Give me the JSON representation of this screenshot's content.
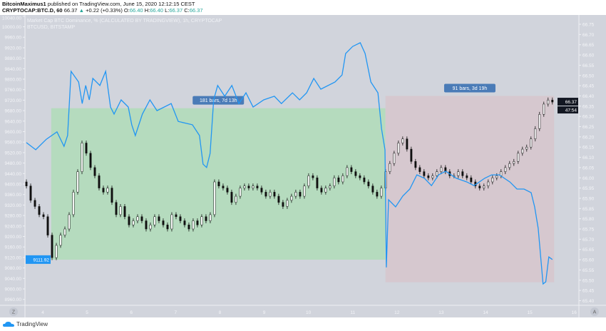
{
  "header": {
    "author": "BitcoinMaximus1",
    "published": "published on TradingView.com, June 15, 2020 12:12:15 CEST",
    "symbol": "CRYPTOCAP:BTC.D, 60",
    "last": "66.37",
    "change": "+0.22 (+0.33%)",
    "o_label": "O:",
    "o": "66.40",
    "h_label": "H:",
    "h": "66.40",
    "l_label": "L:",
    "l": "66.37",
    "c_label": "C:",
    "c": "66.37"
  },
  "footer": {
    "brand": "TradingView"
  },
  "colors": {
    "background": "#d1d4dc",
    "blue_line": "#2196f3",
    "green_range": "#b5dbbe",
    "red_range": "#d6c8cf",
    "range_label": "#4a7bb7"
  },
  "chart_data": {
    "type": "candlestick+line",
    "legend": [
      "Market Cap BTC Dominance, % (CALCULATED BY TRADINGVIEW), 1h, CRYPTOCAP",
      "BTCUSD, BITSTAMP"
    ],
    "x_ticks": [
      "4",
      "5",
      "6",
      "7",
      "8",
      "9",
      "10",
      "11",
      "12",
      "13",
      "14",
      "15",
      "16"
    ],
    "xlim": [
      3.6,
      16.4
    ],
    "left_axis": {
      "ylim": [
        8940,
        10050
      ],
      "ticks": [
        "10040.00",
        "10000.00",
        "9960.00",
        "9920.00",
        "9880.00",
        "9840.00",
        "9800.00",
        "9760.00",
        "9720.00",
        "9680.00",
        "9640.00",
        "9600.00",
        "9560.00",
        "9520.00",
        "9480.00",
        "9440.00",
        "9400.00",
        "9360.00",
        "9320.00",
        "9280.00",
        "9240.00",
        "9200.00",
        "9160.00",
        "9120.00",
        "9080.00",
        "9040.00",
        "9000.00",
        "8960.00"
      ],
      "last_label": "9111.92",
      "last_value": 9111.92
    },
    "right_axis": {
      "ylim": [
        65.38,
        66.78
      ],
      "ticks": [
        "66.75",
        "66.70",
        "66.65",
        "66.60",
        "66.55",
        "66.50",
        "66.45",
        "66.40",
        "66.35",
        "66.30",
        "66.25",
        "66.20",
        "66.15",
        "66.10",
        "66.05",
        "66.00",
        "65.95",
        "65.90",
        "65.85",
        "65.80",
        "65.75",
        "65.70",
        "65.65",
        "65.60",
        "65.55",
        "65.50",
        "65.45",
        "65.40"
      ],
      "last_label": "66.37",
      "last_value": 66.37,
      "countdown": "47:54"
    },
    "corner_left": "Z",
    "corner_right": "A",
    "candles": {
      "name": "CRYPTOCAP:BTC.D",
      "axis": "right",
      "x_range_days": [
        3.63,
        15.51
      ],
      "closes": [
        65.96,
        65.89,
        65.86,
        65.82,
        65.81,
        65.72,
        65.61,
        65.67,
        65.72,
        65.75,
        65.82,
        65.93,
        66.03,
        66.17,
        66.12,
        66.05,
        66.01,
        65.95,
        65.93,
        65.95,
        65.88,
        65.82,
        65.86,
        65.81,
        65.77,
        65.79,
        65.81,
        65.79,
        65.75,
        65.77,
        65.81,
        65.79,
        65.77,
        65.75,
        65.82,
        65.81,
        65.79,
        65.77,
        65.75,
        65.79,
        65.77,
        65.81,
        65.79,
        65.82,
        65.98,
        65.96,
        65.95,
        65.93,
        65.88,
        65.91,
        65.95,
        65.96,
        65.95,
        65.96,
        65.95,
        65.93,
        65.91,
        65.93,
        65.91,
        65.88,
        65.86,
        65.89,
        65.91,
        65.93,
        65.91,
        65.96,
        66.01,
        66.0,
        65.95,
        65.93,
        65.95,
        65.96,
        66.0,
        65.98,
        66.01,
        66.05,
        66.03,
        66.01,
        66.0,
        65.98,
        65.96,
        65.93,
        65.91,
        65.95,
        66.03,
        66.07,
        66.12,
        66.17,
        66.19,
        66.14,
        66.08,
        66.05,
        66.03,
        66.01,
        66.0,
        66.01,
        66.03,
        66.05,
        66.03,
        66.01,
        66.01,
        66.03,
        66.01,
        66.0,
        65.98,
        65.96,
        65.95,
        65.96,
        65.98,
        66.0,
        66.01,
        66.03,
        66.05,
        66.07,
        66.08,
        66.12,
        66.14,
        66.15,
        66.19,
        66.24,
        66.31,
        66.36,
        66.38,
        66.37
      ]
    },
    "line": {
      "name": "BTCUSD, BITSTAMP",
      "axis": "left",
      "points": [
        [
          3.63,
          9558
        ],
        [
          3.84,
          9531
        ],
        [
          4.08,
          9571
        ],
        [
          4.32,
          9599
        ],
        [
          4.48,
          9544
        ],
        [
          4.56,
          9585
        ],
        [
          4.64,
          9830
        ],
        [
          4.81,
          9789
        ],
        [
          4.89,
          9707
        ],
        [
          4.97,
          9776
        ],
        [
          5.05,
          9721
        ],
        [
          5.13,
          9803
        ],
        [
          5.29,
          9776
        ],
        [
          5.42,
          9830
        ],
        [
          5.53,
          9694
        ],
        [
          5.61,
          9667
        ],
        [
          5.77,
          9721
        ],
        [
          5.93,
          9694
        ],
        [
          6.01,
          9626
        ],
        [
          6.09,
          9585
        ],
        [
          6.25,
          9667
        ],
        [
          6.42,
          9721
        ],
        [
          6.58,
          9680
        ],
        [
          6.9,
          9707
        ],
        [
          7.06,
          9639
        ],
        [
          7.38,
          9626
        ],
        [
          7.54,
          9585
        ],
        [
          7.62,
          9476
        ],
        [
          7.7,
          9463
        ],
        [
          7.78,
          9517
        ],
        [
          7.86,
          9721
        ],
        [
          7.95,
          9776
        ],
        [
          8.11,
          9735
        ],
        [
          8.27,
          9776
        ],
        [
          8.43,
          9707
        ],
        [
          8.59,
          9748
        ],
        [
          8.75,
          9694
        ],
        [
          8.99,
          9721
        ],
        [
          9.23,
          9735
        ],
        [
          9.39,
          9707
        ],
        [
          9.64,
          9748
        ],
        [
          9.8,
          9721
        ],
        [
          9.96,
          9748
        ],
        [
          10.12,
          9803
        ],
        [
          10.28,
          9762
        ],
        [
          10.6,
          9789
        ],
        [
          10.76,
          9816
        ],
        [
          10.84,
          9898
        ],
        [
          11.0,
          9925
        ],
        [
          11.17,
          9939
        ],
        [
          11.28,
          9898
        ],
        [
          11.41,
          9789
        ],
        [
          11.57,
          9748
        ],
        [
          11.65,
          9612
        ],
        [
          11.73,
          9531
        ],
        [
          11.76,
          9082
        ],
        [
          11.81,
          9340
        ],
        [
          11.97,
          9313
        ],
        [
          12.13,
          9354
        ],
        [
          12.29,
          9381
        ],
        [
          12.45,
          9435
        ],
        [
          12.62,
          9422
        ],
        [
          12.78,
          9394
        ],
        [
          12.94,
          9435
        ],
        [
          13.1,
          9449
        ],
        [
          13.34,
          9422
        ],
        [
          13.58,
          9408
        ],
        [
          13.74,
          9394
        ],
        [
          13.98,
          9422
        ],
        [
          14.14,
          9435
        ],
        [
          14.31,
          9435
        ],
        [
          14.55,
          9408
        ],
        [
          14.71,
          9381
        ],
        [
          14.87,
          9381
        ],
        [
          15.03,
          9367
        ],
        [
          15.11,
          9313
        ],
        [
          15.19,
          9231
        ],
        [
          15.3,
          9019
        ],
        [
          15.36,
          9027
        ],
        [
          15.43,
          9122
        ],
        [
          15.51,
          9112
        ]
      ]
    },
    "ranges": [
      {
        "label": "181 bars, 7d 13h",
        "from_day": 4.19,
        "to_day": 11.74,
        "from_value": 65.6,
        "to_value": 66.34,
        "color": "green"
      },
      {
        "label": "91 bars, 3d 19h",
        "from_day": 11.74,
        "to_day": 15.55,
        "from_value": 65.49,
        "to_value": 66.4,
        "color": "red"
      }
    ]
  }
}
